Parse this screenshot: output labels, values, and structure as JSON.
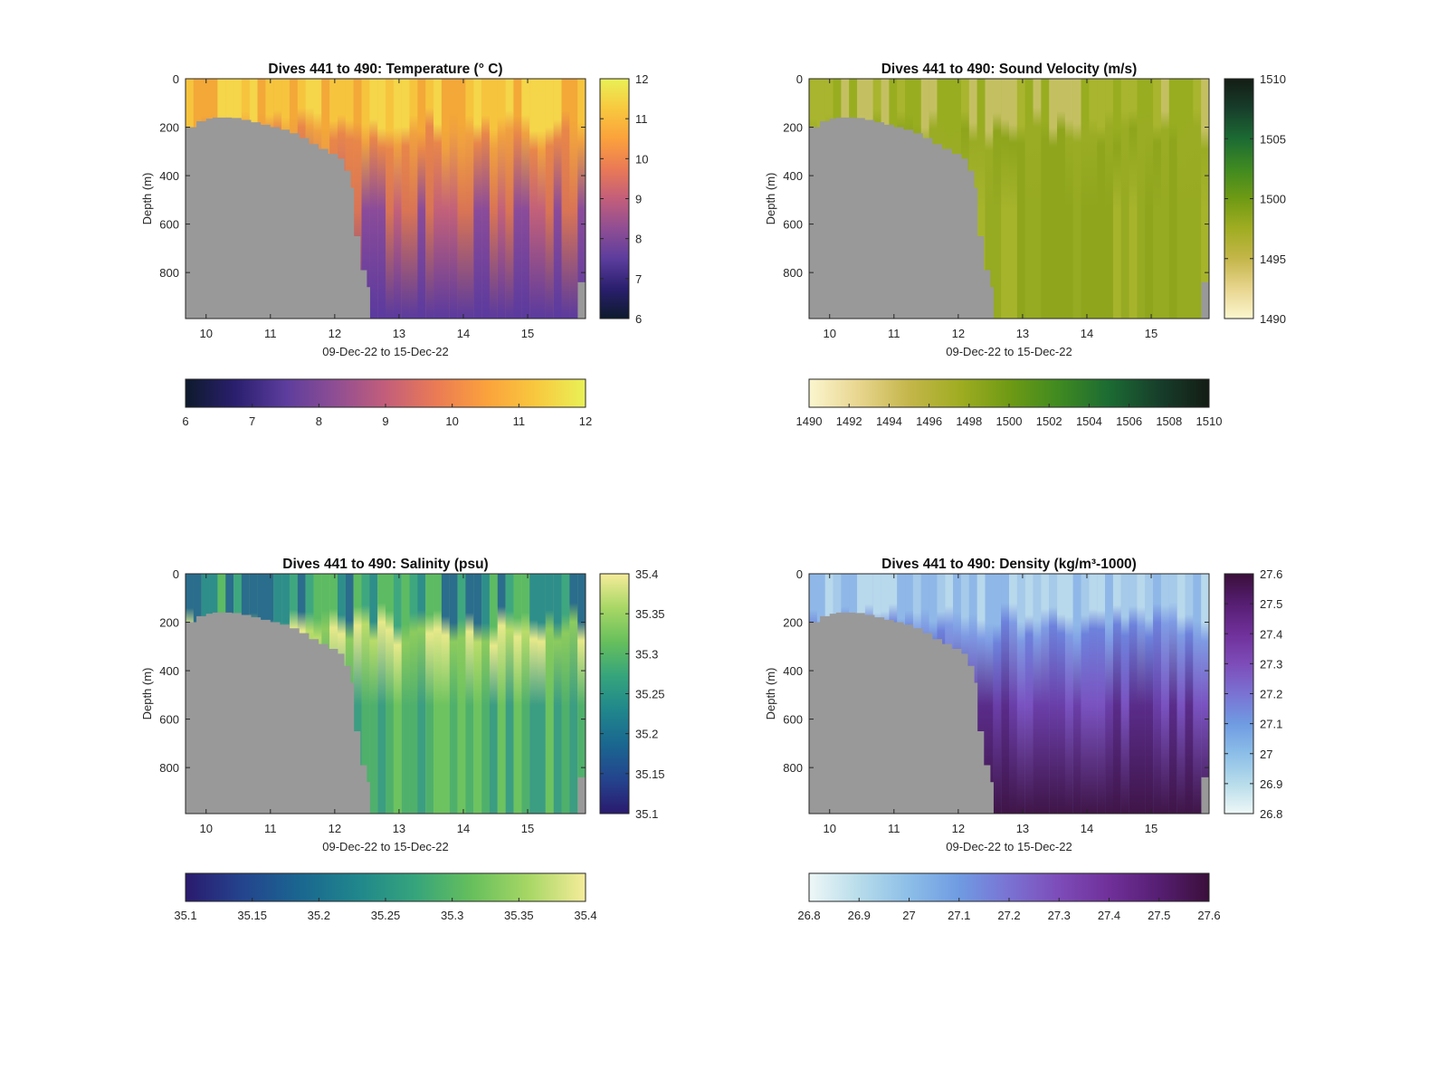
{
  "figure": {
    "background": "#ffffff"
  },
  "chart_data": [
    {
      "type": "heatmap",
      "panel": "top-left",
      "title": "Dives 441 to 490: Temperature (° C)",
      "xlabel": "09-Dec-22 to 15-Dec-22",
      "ylabel": "Depth (m)",
      "x_ticks": [
        "10",
        "11",
        "12",
        "13",
        "14",
        "15"
      ],
      "x_tick_values": [
        10,
        11,
        12,
        13,
        14,
        15
      ],
      "xlim": [
        9.68,
        15.9
      ],
      "y_ticks": [
        "0",
        "200",
        "400",
        "600",
        "800"
      ],
      "y_tick_values": [
        0,
        200,
        400,
        600,
        800
      ],
      "ylim": [
        0,
        990
      ],
      "y_reversed": true,
      "mask_color": "#999999",
      "mask_boundary": {
        "x": [
          9.68,
          9.85,
          10.0,
          10.1,
          10.25,
          10.4,
          10.55,
          10.7,
          10.85,
          11.0,
          11.15,
          11.3,
          11.45,
          11.6,
          11.75,
          11.9,
          12.05,
          12.15,
          12.25,
          12.3,
          12.4,
          12.5,
          12.55
        ],
        "depth": [
          200,
          175,
          165,
          160,
          160,
          162,
          170,
          180,
          190,
          200,
          210,
          225,
          245,
          270,
          290,
          310,
          330,
          380,
          450,
          650,
          790,
          860,
          990
        ]
      },
      "bottom_mask_right": {
        "x": [
          15.78,
          15.9
        ],
        "depth": 840
      },
      "profile_colors": {
        "surface": [
          "#f5d54a",
          "#f7c43e",
          "#f3a838"
        ],
        "mid": [
          "#f0a040",
          "#e8864a"
        ],
        "deep": [
          "#d97455",
          "#c2607a",
          "#8a4b9a",
          "#5a3a9e"
        ]
      },
      "colorbar": {
        "colors": [
          "#0d1a2c",
          "#2a1f6e",
          "#5c3d9d",
          "#8f4e93",
          "#c35e7a",
          "#ea7a55",
          "#fba13c",
          "#f8c83e",
          "#e9f157"
        ],
        "min": 6,
        "max": 12,
        "vertical_ticks": [
          "6",
          "7",
          "8",
          "9",
          "10",
          "11",
          "12"
        ],
        "horizontal_ticks": [
          "6",
          "7",
          "8",
          "9",
          "10",
          "11",
          "12"
        ]
      }
    },
    {
      "type": "heatmap",
      "panel": "top-right",
      "title": "Dives 441 to 490: Sound Velocity (m/s)",
      "xlabel": "09-Dec-22 to 15-Dec-22",
      "ylabel": "Depth (m)",
      "x_ticks": [
        "10",
        "11",
        "12",
        "13",
        "14",
        "15"
      ],
      "x_tick_values": [
        10,
        11,
        12,
        13,
        14,
        15
      ],
      "xlim": [
        9.68,
        15.9
      ],
      "y_ticks": [
        "0",
        "200",
        "400",
        "600",
        "800"
      ],
      "y_tick_values": [
        0,
        200,
        400,
        600,
        800
      ],
      "ylim": [
        0,
        990
      ],
      "y_reversed": true,
      "mask_color": "#999999",
      "mask_boundary": {
        "x": [
          9.68,
          9.85,
          10.0,
          10.1,
          10.25,
          10.4,
          10.55,
          10.7,
          10.85,
          11.0,
          11.15,
          11.3,
          11.45,
          11.6,
          11.75,
          11.9,
          12.05,
          12.15,
          12.25,
          12.3,
          12.4,
          12.5,
          12.55
        ],
        "depth": [
          200,
          175,
          165,
          160,
          160,
          162,
          170,
          180,
          190,
          200,
          210,
          225,
          245,
          270,
          290,
          310,
          330,
          380,
          450,
          650,
          790,
          860,
          990
        ]
      },
      "bottom_mask_right": {
        "x": [
          15.78,
          15.9
        ],
        "depth": 840
      },
      "profile_colors": {
        "surface": [
          "#98ad20",
          "#a9b52e",
          "#c4c062"
        ],
        "mid": [
          "#9aac24",
          "#8ea51c"
        ],
        "deep": [
          "#96aa22",
          "#a6b42c",
          "#8ea51c",
          "#b8bb40"
        ]
      },
      "colorbar": {
        "colors": [
          "#fbf6cf",
          "#e8d58e",
          "#c4b64a",
          "#a0ad22",
          "#6f9a14",
          "#3f8a21",
          "#1c6b33",
          "#173e2b",
          "#141c14"
        ],
        "min": 1490,
        "max": 1510,
        "vertical_ticks": [
          "1490",
          "1495",
          "1500",
          "1505",
          "1510"
        ],
        "horizontal_ticks": [
          "1490",
          "1492",
          "1494",
          "1496",
          "1498",
          "1500",
          "1502",
          "1504",
          "1506",
          "1508",
          "1510"
        ]
      }
    },
    {
      "type": "heatmap",
      "panel": "bottom-left",
      "title": "Dives 441 to 490: Salinity (psu)",
      "xlabel": "09-Dec-22 to 15-Dec-22",
      "ylabel": "Depth (m)",
      "x_ticks": [
        "10",
        "11",
        "12",
        "13",
        "14",
        "15"
      ],
      "x_tick_values": [
        10,
        11,
        12,
        13,
        14,
        15
      ],
      "xlim": [
        9.68,
        15.9
      ],
      "y_ticks": [
        "0",
        "200",
        "400",
        "600",
        "800"
      ],
      "y_tick_values": [
        0,
        200,
        400,
        600,
        800
      ],
      "ylim": [
        0,
        990
      ],
      "y_reversed": true,
      "mask_color": "#999999",
      "mask_boundary": {
        "x": [
          9.68,
          9.85,
          10.0,
          10.1,
          10.25,
          10.4,
          10.55,
          10.7,
          10.85,
          11.0,
          11.15,
          11.3,
          11.45,
          11.6,
          11.75,
          11.9,
          12.05,
          12.15,
          12.25,
          12.3,
          12.4,
          12.5,
          12.55
        ],
        "depth": [
          200,
          175,
          165,
          160,
          160,
          162,
          170,
          180,
          190,
          200,
          210,
          225,
          245,
          270,
          290,
          310,
          330,
          380,
          450,
          650,
          790,
          860,
          990
        ]
      },
      "bottom_mask_right": {
        "x": [
          15.78,
          15.9
        ],
        "depth": 840
      },
      "profile_colors": {
        "surface": [
          "#3fa77f",
          "#2e8e8a",
          "#5dbb63",
          "#2a6d8c"
        ],
        "mid": [
          "#e6e98a",
          "#b9dc6a",
          "#8ccb5e"
        ],
        "deep": [
          "#6dc35f",
          "#4fb06c",
          "#3b9d82",
          "#2f8a8a"
        ]
      },
      "colorbar": {
        "colors": [
          "#2a1a6e",
          "#24448e",
          "#1a6690",
          "#20868c",
          "#35a47c",
          "#66bf5c",
          "#a7d765",
          "#f5ec9a"
        ],
        "min": 35.1,
        "max": 35.4,
        "vertical_ticks": [
          "35.1",
          "35.15",
          "35.2",
          "35.25",
          "35.3",
          "35.35",
          "35.4"
        ],
        "horizontal_ticks": [
          "35.1",
          "35.15",
          "35.2",
          "35.25",
          "35.3",
          "35.35",
          "35.4"
        ]
      }
    },
    {
      "type": "heatmap",
      "panel": "bottom-right",
      "title": "Dives 441 to 490: Density (kg/m³-1000)",
      "xlabel": "09-Dec-22 to 15-Dec-22",
      "ylabel": "Depth (m)",
      "x_ticks": [
        "10",
        "11",
        "12",
        "13",
        "14",
        "15"
      ],
      "x_tick_values": [
        10,
        11,
        12,
        13,
        14,
        15
      ],
      "xlim": [
        9.68,
        15.9
      ],
      "y_ticks": [
        "0",
        "200",
        "400",
        "600",
        "800"
      ],
      "y_tick_values": [
        0,
        200,
        400,
        600,
        800
      ],
      "ylim": [
        0,
        990
      ],
      "y_reversed": true,
      "mask_color": "#999999",
      "mask_boundary": {
        "x": [
          9.68,
          9.85,
          10.0,
          10.1,
          10.25,
          10.4,
          10.55,
          10.7,
          10.85,
          11.0,
          11.15,
          11.3,
          11.45,
          11.6,
          11.75,
          11.9,
          12.05,
          12.15,
          12.25,
          12.3,
          12.4,
          12.5,
          12.55
        ],
        "depth": [
          200,
          175,
          165,
          160,
          160,
          162,
          170,
          180,
          190,
          200,
          210,
          225,
          245,
          270,
          290,
          310,
          330,
          380,
          450,
          650,
          790,
          860,
          990
        ]
      },
      "bottom_mask_right": {
        "x": [
          15.78,
          15.9
        ],
        "depth": 840
      },
      "profile_colors": {
        "surface": [
          "#b8d8ec",
          "#a5caea",
          "#8fb8e8"
        ],
        "mid": [
          "#7f9be4",
          "#6d82dc"
        ],
        "deep": [
          "#7a52c0",
          "#6a3ea8",
          "#5a2c8a",
          "#3f1548"
        ]
      },
      "colorbar": {
        "colors": [
          "#eef7f7",
          "#b7dcea",
          "#8cbee8",
          "#6f9be2",
          "#7a72d3",
          "#7d4cb8",
          "#70309a",
          "#561e72",
          "#3a0f3a"
        ],
        "min": 26.8,
        "max": 27.6,
        "vertical_ticks": [
          "26.8",
          "26.9",
          "27",
          "27.1",
          "27.2",
          "27.3",
          "27.4",
          "27.5",
          "27.6"
        ],
        "horizontal_ticks": [
          "26.8",
          "26.9",
          "27",
          "27.1",
          "27.2",
          "27.3",
          "27.4",
          "27.5",
          "27.6"
        ]
      }
    }
  ]
}
